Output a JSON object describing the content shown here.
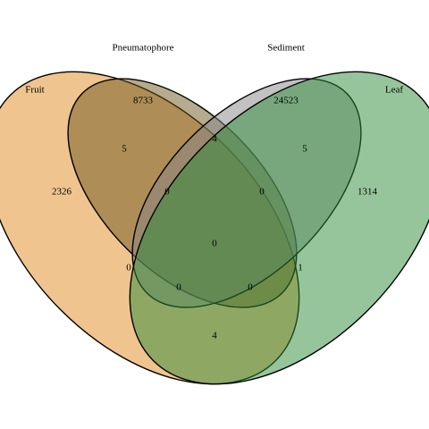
{
  "sets": [
    {
      "key": "fruit",
      "name": "Fruit",
      "color": "#E08A1E"
    },
    {
      "key": "pneumatophore",
      "name": "Pneumatophore",
      "color": "#6E5620"
    },
    {
      "key": "sediment",
      "name": "Sediment",
      "color": "#858585"
    },
    {
      "key": "leaf",
      "name": "Leaf",
      "color": "#2E8B3A"
    }
  ],
  "regions": {
    "fruit_only": "2326",
    "pneumatophore_only": "8733",
    "sediment_only": "24523",
    "leaf_only": "1314",
    "fruit_pneumatophore": "5",
    "pneumatophore_sediment": "4",
    "sediment_leaf": "5",
    "fruit_pneumatophore_sediment": "0",
    "pneumatophore_sediment_leaf": "0",
    "fruit_sediment": "0",
    "all_four": "0",
    "pneumatophore_leaf": "1",
    "fruit_sediment_leaf": "0",
    "fruit_pneumatophore_leaf": "0",
    "fruit_leaf": "4"
  }
}
